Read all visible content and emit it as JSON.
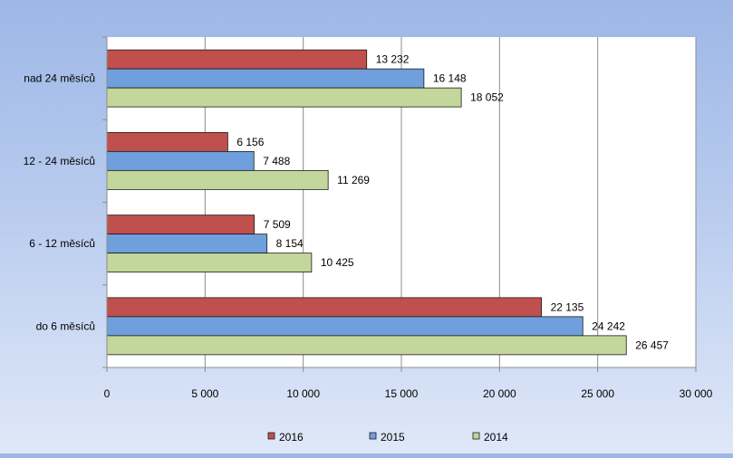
{
  "chart_data": {
    "type": "bar",
    "orientation": "horizontal",
    "categories": [
      "nad 24 měsíců",
      "12 - 24 měsíců",
      "6 - 12 měsíců",
      "do 6 měsíců"
    ],
    "series": [
      {
        "name": "2016",
        "color": "#c0504d",
        "values": [
          13232,
          6156,
          7509,
          22135
        ],
        "labels": [
          "13 232",
          "6 156",
          "7 509",
          "22 135"
        ]
      },
      {
        "name": "2015",
        "color": "#6f9fdc",
        "values": [
          16148,
          7488,
          8154,
          24242
        ],
        "labels": [
          "16 148",
          "7 488",
          "8 154",
          "24 242"
        ]
      },
      {
        "name": "2014",
        "color": "#c3d69b",
        "values": [
          18052,
          11269,
          10425,
          26457
        ],
        "labels": [
          "18 052",
          "11 269",
          "10 425",
          "26 457"
        ]
      }
    ],
    "xlim": [
      0,
      30000
    ],
    "ticks": [
      0,
      5000,
      10000,
      15000,
      20000,
      25000,
      30000
    ],
    "tick_labels": [
      "0",
      "5 000",
      "10 000",
      "15 000",
      "20 000",
      "25 000",
      "30 000"
    ],
    "grid": true,
    "legend_position": "bottom",
    "title": "",
    "xlabel": "",
    "ylabel": ""
  }
}
